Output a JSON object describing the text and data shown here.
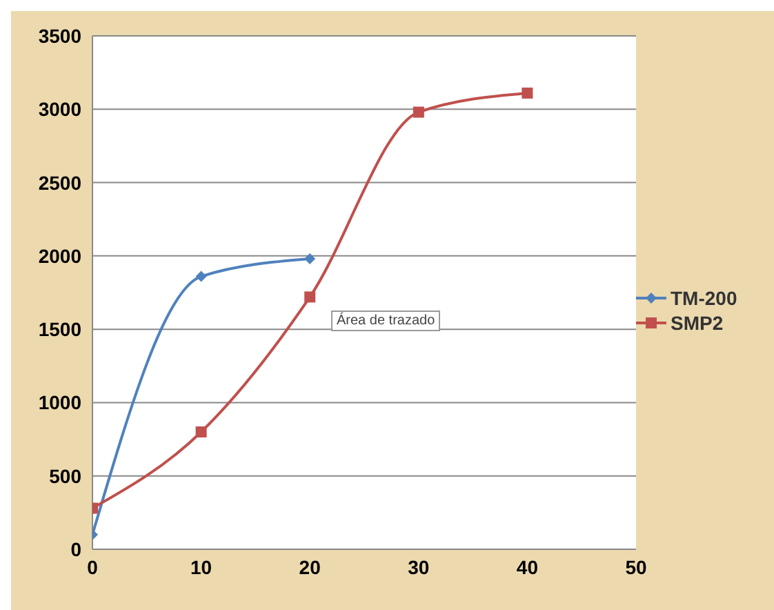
{
  "chart_data": {
    "type": "line",
    "xlim": [
      0,
      50
    ],
    "xticks": [
      0,
      10,
      20,
      30,
      40,
      50
    ],
    "ylim": [
      0,
      3500
    ],
    "yticks": [
      0,
      500,
      1000,
      1500,
      2000,
      2500,
      3000,
      3500
    ],
    "grid": "y",
    "legend": "right",
    "line_style": "solid",
    "annotations": [
      "Área de trazado"
    ],
    "series": [
      {
        "name": "TM-200",
        "color": "#4f81bd",
        "marker": "diamond",
        "x": [
          0,
          10,
          20
        ],
        "values": [
          100,
          1860,
          1980
        ]
      },
      {
        "name": "SMP2",
        "color": "#c0504d",
        "marker": "square",
        "x": [
          0,
          10,
          20,
          30,
          40
        ],
        "values": [
          280,
          800,
          1720,
          2980,
          3110
        ]
      }
    ]
  }
}
